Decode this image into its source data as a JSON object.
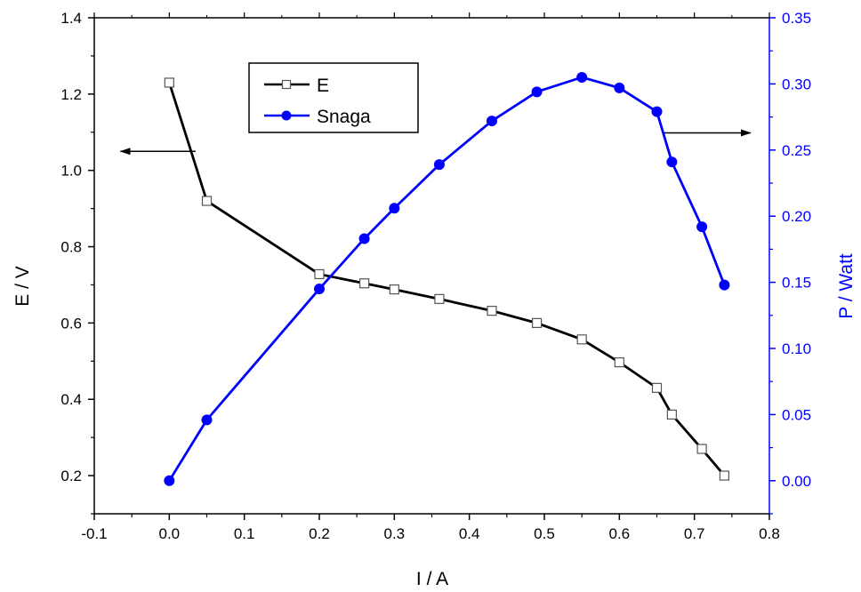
{
  "chart_data": {
    "type": "line",
    "xlabel": "I / A",
    "ylabel": "E / V",
    "y2label": "P / Watt",
    "xlim": [
      -0.1,
      0.8
    ],
    "ylim": [
      0.1,
      1.4
    ],
    "y2lim": [
      -0.025,
      0.35
    ],
    "x_ticks": [
      "-0.1",
      "0.0",
      "0.1",
      "0.2",
      "0.3",
      "0.4",
      "0.5",
      "0.6",
      "0.7",
      "0.8"
    ],
    "y_ticks": [
      "0.2",
      "0.4",
      "0.6",
      "0.8",
      "1.0",
      "1.2",
      "1.4"
    ],
    "y2_ticks": [
      "0.00",
      "0.05",
      "0.10",
      "0.15",
      "0.20",
      "0.25",
      "0.30",
      "0.35"
    ],
    "grid": false,
    "legend_position": "top-center",
    "series": [
      {
        "name": "E",
        "axis": "left",
        "color": "#000000",
        "marker": "open-square",
        "x": [
          0.0,
          0.05,
          0.2,
          0.26,
          0.3,
          0.36,
          0.43,
          0.49,
          0.55,
          0.6,
          0.65,
          0.67,
          0.71,
          0.74
        ],
        "y": [
          1.23,
          0.92,
          0.728,
          0.704,
          0.688,
          0.663,
          0.632,
          0.6,
          0.557,
          0.497,
          0.43,
          0.36,
          0.27,
          0.2
        ]
      },
      {
        "name": "Snaga",
        "axis": "right",
        "color": "#0000ff",
        "marker": "filled-circle",
        "x": [
          0.0,
          0.05,
          0.2,
          0.26,
          0.3,
          0.36,
          0.43,
          0.49,
          0.55,
          0.6,
          0.65,
          0.67,
          0.71,
          0.74
        ],
        "y": [
          0.0,
          0.046,
          0.145,
          0.183,
          0.206,
          0.239,
          0.272,
          0.294,
          0.305,
          0.297,
          0.279,
          0.241,
          0.192,
          0.148
        ]
      }
    ],
    "annotations": [
      {
        "type": "arrow",
        "direction": "left",
        "from_x": 0.035,
        "to_x": -0.065,
        "y": 1.05,
        "axis": "left"
      },
      {
        "type": "arrow",
        "direction": "right",
        "from_x": 0.66,
        "to_x": 0.775,
        "y2": 0.263,
        "axis": "right"
      }
    ]
  }
}
